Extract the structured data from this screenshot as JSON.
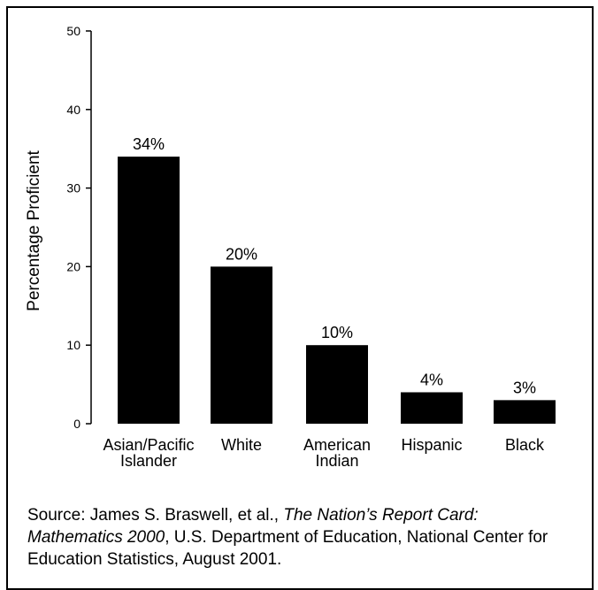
{
  "chart_data": {
    "type": "bar",
    "categories": [
      [
        "Asian/Pacific",
        "Islander"
      ],
      [
        "White"
      ],
      [
        "American",
        "Indian"
      ],
      [
        "Hispanic"
      ],
      [
        "Black"
      ]
    ],
    "values": [
      34,
      20,
      10,
      4,
      3
    ],
    "value_labels": [
      "34%",
      "20%",
      "10%",
      "4%",
      "3%"
    ],
    "ylabel": "Percentage Proficient",
    "ylim": [
      0,
      50
    ],
    "yticks": [
      0,
      10,
      20,
      30,
      40,
      50
    ],
    "grid": false,
    "bar_color": "#000000"
  },
  "source": {
    "prefix": "Source: James S. Braswell, et al., ",
    "title": "The Nation’s Report Card: Mathematics 2000",
    "suffix": ", U.S. Department of Education, National Center for Education Statistics, August 2001."
  }
}
